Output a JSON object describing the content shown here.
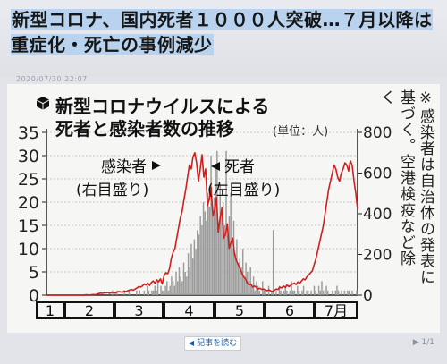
{
  "headline": {
    "title": "新型コロナ、国内死者１０００人突破…７月以降は重症化・死亡の事例減少",
    "timestamp": "2020/07/30 22:07"
  },
  "chart_data": {
    "type": "bar+line",
    "title_line1": "新型コロナウイルスによる",
    "title_line2": "死者と感染者数の推移",
    "unit": "(単位：人)",
    "note": "※感染者は自治体の発表に基づく。空港検疫など除く",
    "left_axis": {
      "label": "(左目盛り)",
      "ylim": [
        0,
        35
      ],
      "ticks": [
        0,
        5,
        10,
        15,
        20,
        25,
        30,
        35
      ]
    },
    "right_axis": {
      "label": "(右目盛り)",
      "ylim": [
        0,
        800
      ],
      "ticks": [
        0,
        200,
        400,
        600,
        800
      ]
    },
    "months": [
      "1",
      "2",
      "3",
      "4",
      "5",
      "6",
      "7月"
    ],
    "series": [
      {
        "name": "死者",
        "axis_note": "(左目盛り)",
        "type": "bar",
        "color": "#9b9b9b",
        "values": [
          0,
          0,
          0,
          0,
          0,
          0,
          0,
          0,
          0,
          0,
          0,
          0,
          0,
          0,
          0,
          0,
          0,
          0,
          0,
          0,
          0,
          0,
          0,
          0,
          0,
          0,
          0,
          0,
          0,
          0,
          0,
          0,
          0,
          0,
          0,
          0,
          0,
          0,
          0,
          0,
          0,
          0,
          0,
          1,
          0,
          0,
          1,
          0,
          0,
          0,
          0,
          1,
          0,
          0,
          1,
          0,
          0,
          0,
          0,
          1,
          0,
          1,
          0,
          0,
          1,
          0,
          2,
          1,
          0,
          1,
          1,
          2,
          1,
          3,
          0,
          2,
          1,
          1,
          2,
          3,
          1,
          2,
          4,
          3,
          2,
          5,
          3,
          6,
          4,
          3,
          7,
          5,
          4,
          9,
          6,
          11,
          8,
          12,
          10,
          14,
          13,
          17,
          15,
          20,
          18,
          16,
          22,
          19,
          30,
          17,
          21,
          28,
          31,
          14,
          24,
          18,
          20,
          15,
          31,
          13,
          17,
          22,
          10,
          16,
          9,
          12,
          7,
          8,
          6,
          10,
          4,
          7,
          5,
          3,
          6,
          2,
          4,
          1,
          3,
          2,
          1,
          0,
          3,
          1,
          1,
          0,
          2,
          0,
          1,
          14,
          0,
          1,
          0,
          2,
          1,
          0,
          1,
          2,
          1,
          0,
          1,
          3,
          1,
          1,
          0,
          2,
          1,
          0,
          1,
          2,
          0,
          1,
          1,
          0,
          1,
          0,
          2,
          1,
          0,
          2,
          1,
          3,
          1,
          0,
          2,
          1,
          0,
          0,
          1,
          0,
          1,
          2,
          1,
          0,
          1,
          0,
          1,
          0,
          1,
          1,
          0,
          1,
          0,
          0,
          1
        ]
      },
      {
        "name": "感染者",
        "axis_note": "(右目盛り)",
        "type": "line",
        "color": "#cf2020",
        "values": [
          0,
          0,
          0,
          0,
          0,
          0,
          0,
          0,
          0,
          0,
          0,
          0,
          0,
          0,
          0,
          0,
          0,
          0,
          0,
          0,
          0,
          1,
          2,
          1,
          1,
          2,
          3,
          2,
          5,
          8,
          10,
          9,
          12,
          11,
          13,
          9,
          14,
          12,
          10,
          15,
          18,
          16,
          14,
          20,
          17,
          22,
          25,
          28,
          24,
          30,
          35,
          42,
          40,
          45,
          55,
          50,
          60,
          48,
          62,
          70,
          58,
          75,
          65,
          80,
          55,
          95,
          110,
          105,
          130,
          180,
          210,
          230,
          280,
          330,
          380,
          410,
          470,
          520,
          580,
          640,
          620,
          680,
          700,
          650,
          560,
          620,
          690,
          580,
          620,
          440,
          470,
          530,
          390,
          420,
          480,
          310,
          380,
          430,
          280,
          300,
          350,
          230,
          260,
          280,
          200,
          170,
          150,
          130,
          110,
          90,
          80,
          60,
          50,
          55,
          40,
          45,
          38,
          30,
          34,
          28,
          30,
          25,
          22,
          26,
          20,
          18,
          24,
          30,
          28,
          40,
          35,
          45,
          38,
          50,
          42,
          48,
          55,
          60,
          52,
          65,
          58,
          70,
          80,
          75,
          90,
          100,
          110,
          120,
          150,
          180,
          220,
          260,
          300,
          340,
          400,
          460,
          520,
          560,
          600,
          640,
          620,
          580,
          560,
          600,
          620,
          650,
          640,
          610,
          660,
          640,
          560,
          500,
          420
        ]
      }
    ],
    "annotations": {
      "infected": "感染者",
      "deaths": "死者"
    }
  },
  "read_more": {
    "label": "記事を読む"
  },
  "corner": {
    "label": "▶ 1/1"
  }
}
